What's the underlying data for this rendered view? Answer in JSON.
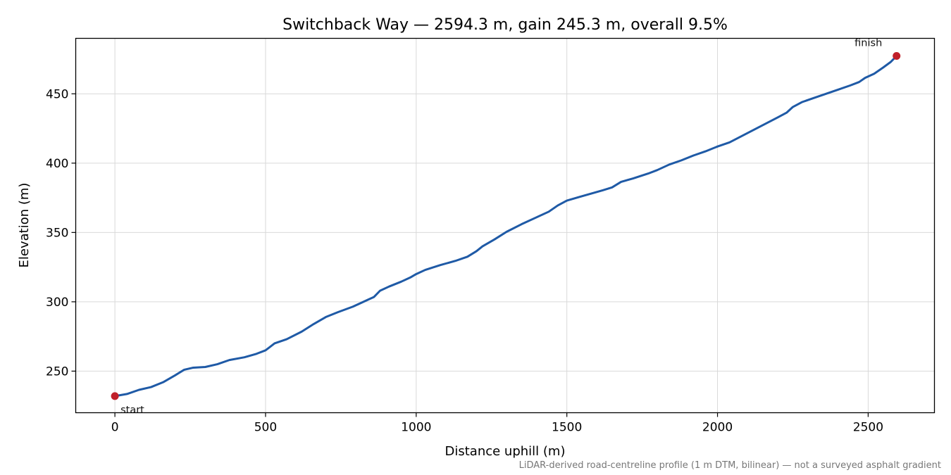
{
  "chart_data": {
    "type": "line",
    "title": "Switchback Way — 2594.3 m, gain 245.3 m, overall 9.5%",
    "xlabel": "Distance uphill (m)",
    "ylabel": "Elevation (m)",
    "xlim": [
      -130,
      2720
    ],
    "ylim": [
      220,
      490
    ],
    "x_ticks": [
      0,
      500,
      1000,
      1500,
      2000,
      2500
    ],
    "x_tick_labels": [
      "0",
      "500",
      "1000",
      "1500",
      "2000",
      "2500"
    ],
    "y_ticks": [
      250,
      300,
      350,
      400,
      450
    ],
    "y_tick_labels": [
      "250",
      "300",
      "350",
      "400",
      "450"
    ],
    "grid": true,
    "series": [
      {
        "color": "#1f5aa6",
        "points": [
          [
            0,
            232.0
          ],
          [
            40,
            233.5
          ],
          [
            80,
            236.5
          ],
          [
            120,
            238.5
          ],
          [
            160,
            242
          ],
          [
            200,
            247
          ],
          [
            230,
            251
          ],
          [
            260,
            252.5
          ],
          [
            300,
            253
          ],
          [
            340,
            255
          ],
          [
            380,
            258
          ],
          [
            430,
            260
          ],
          [
            470,
            262.5
          ],
          [
            500,
            265
          ],
          [
            530,
            270
          ],
          [
            570,
            273
          ],
          [
            620,
            278.5
          ],
          [
            660,
            284
          ],
          [
            700,
            289
          ],
          [
            740,
            292.5
          ],
          [
            790,
            296.5
          ],
          [
            840,
            301.5
          ],
          [
            860,
            303.5
          ],
          [
            880,
            308
          ],
          [
            910,
            311
          ],
          [
            950,
            314.5
          ],
          [
            980,
            317.5
          ],
          [
            1000,
            320
          ],
          [
            1030,
            323
          ],
          [
            1080,
            326.5
          ],
          [
            1130,
            329.5
          ],
          [
            1170,
            332.5
          ],
          [
            1200,
            336.5
          ],
          [
            1220,
            340
          ],
          [
            1260,
            345
          ],
          [
            1300,
            350.5
          ],
          [
            1350,
            356
          ],
          [
            1400,
            361
          ],
          [
            1440,
            365
          ],
          [
            1470,
            369.5
          ],
          [
            1500,
            373
          ],
          [
            1540,
            375.5
          ],
          [
            1580,
            378
          ],
          [
            1620,
            380.5
          ],
          [
            1650,
            382.5
          ],
          [
            1680,
            386.5
          ],
          [
            1720,
            389
          ],
          [
            1770,
            392.5
          ],
          [
            1800,
            395
          ],
          [
            1840,
            399
          ],
          [
            1880,
            402
          ],
          [
            1920,
            405.5
          ],
          [
            1960,
            408.5
          ],
          [
            2000,
            412
          ],
          [
            2040,
            415
          ],
          [
            2080,
            419.5
          ],
          [
            2120,
            424
          ],
          [
            2160,
            428.5
          ],
          [
            2200,
            433
          ],
          [
            2230,
            436.5
          ],
          [
            2250,
            440.5
          ],
          [
            2280,
            444
          ],
          [
            2320,
            447
          ],
          [
            2360,
            450
          ],
          [
            2400,
            453
          ],
          [
            2440,
            456
          ],
          [
            2470,
            458.5
          ],
          [
            2490,
            461.5
          ],
          [
            2520,
            464.5
          ],
          [
            2550,
            469
          ],
          [
            2575,
            473
          ],
          [
            2594.3,
            477.3
          ]
        ]
      }
    ],
    "markers": [
      {
        "label": "start",
        "x": 0,
        "y": 232.0,
        "color": "#c0202a"
      },
      {
        "label": "finish",
        "x": 2594.3,
        "y": 477.3,
        "color": "#c0202a"
      }
    ],
    "footnote": "LiDAR-derived road-centreline profile (1 m DTM, bilinear) — not a surveyed asphalt gradient"
  }
}
